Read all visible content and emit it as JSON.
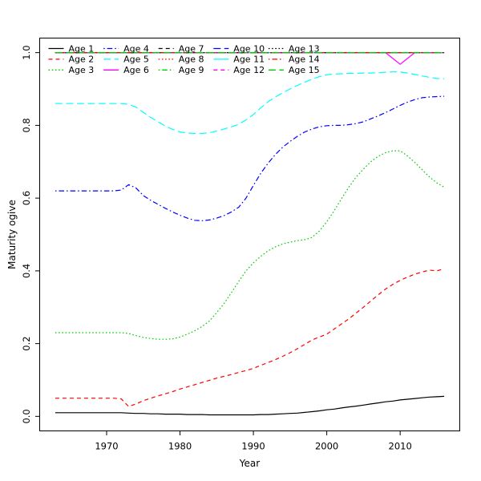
{
  "figure": {
    "background": "#FFFFFF",
    "box_color": "#000000"
  },
  "axes": {
    "x_tick_labels": [
      "1970",
      "1980",
      "1990",
      "2000",
      "2010"
    ],
    "x_tick_values": [
      1970,
      1980,
      1990,
      2000,
      2010
    ],
    "y_tick_labels": [
      "0.0",
      "0.2",
      "0.4",
      "0.6",
      "0.8",
      "1.0"
    ],
    "y_tick_values": [
      0.0,
      0.2,
      0.4,
      0.6,
      0.8,
      1.0
    ]
  },
  "legend": {
    "ncol": 5,
    "nrow": 3,
    "position": "top-left",
    "fill_order": "column-major"
  },
  "chart_data": {
    "type": "line",
    "title": "",
    "xlabel": "Year",
    "ylabel": "Maturity ogive",
    "xlim": [
      1963,
      2016
    ],
    "ylim": [
      0,
      1
    ],
    "grid": false,
    "legend_position": "top-left",
    "x": [
      1963,
      1964,
      1965,
      1966,
      1967,
      1968,
      1969,
      1970,
      1971,
      1972,
      1973,
      1974,
      1975,
      1976,
      1977,
      1978,
      1979,
      1980,
      1981,
      1982,
      1983,
      1984,
      1985,
      1986,
      1987,
      1988,
      1989,
      1990,
      1991,
      1992,
      1993,
      1994,
      1995,
      1996,
      1997,
      1998,
      1999,
      2000,
      2001,
      2002,
      2003,
      2004,
      2005,
      2006,
      2007,
      2008,
      2009,
      2010,
      2011,
      2012,
      2013,
      2014,
      2015,
      2016
    ],
    "series": [
      {
        "name": "Age 1",
        "color": "#000000",
        "linetype": "solid",
        "values": [
          0.01,
          0.01,
          0.01,
          0.01,
          0.01,
          0.01,
          0.01,
          0.01,
          0.01,
          0.01,
          0.009,
          0.008,
          0.008,
          0.007,
          0.007,
          0.006,
          0.006,
          0.006,
          0.005,
          0.005,
          0.005,
          0.004,
          0.004,
          0.004,
          0.004,
          0.004,
          0.004,
          0.004,
          0.005,
          0.005,
          0.006,
          0.007,
          0.008,
          0.009,
          0.011,
          0.013,
          0.015,
          0.018,
          0.02,
          0.023,
          0.026,
          0.028,
          0.031,
          0.034,
          0.037,
          0.04,
          0.042,
          0.045,
          0.047,
          0.049,
          0.051,
          0.053,
          0.054,
          0.055
        ]
      },
      {
        "name": "Age 2",
        "color": "#FF0000",
        "linetype": "dashed",
        "values": [
          0.05,
          0.05,
          0.05,
          0.05,
          0.05,
          0.05,
          0.05,
          0.05,
          0.05,
          0.048,
          0.027,
          0.034,
          0.043,
          0.05,
          0.056,
          0.062,
          0.068,
          0.075,
          0.081,
          0.087,
          0.093,
          0.099,
          0.105,
          0.11,
          0.115,
          0.121,
          0.126,
          0.132,
          0.14,
          0.148,
          0.156,
          0.165,
          0.175,
          0.186,
          0.198,
          0.21,
          0.218,
          0.226,
          0.24,
          0.254,
          0.268,
          0.284,
          0.3,
          0.317,
          0.334,
          0.35,
          0.363,
          0.374,
          0.383,
          0.391,
          0.397,
          0.402,
          0.4,
          0.406
        ]
      },
      {
        "name": "Age 3",
        "color": "#00CD00",
        "linetype": "dotted",
        "values": [
          0.23,
          0.23,
          0.23,
          0.23,
          0.23,
          0.23,
          0.23,
          0.23,
          0.23,
          0.23,
          0.228,
          0.222,
          0.217,
          0.214,
          0.212,
          0.212,
          0.213,
          0.218,
          0.226,
          0.235,
          0.247,
          0.262,
          0.285,
          0.31,
          0.34,
          0.371,
          0.4,
          0.422,
          0.44,
          0.455,
          0.466,
          0.474,
          0.479,
          0.483,
          0.486,
          0.492,
          0.51,
          0.535,
          0.565,
          0.598,
          0.63,
          0.658,
          0.68,
          0.7,
          0.715,
          0.725,
          0.73,
          0.73,
          0.716,
          0.698,
          0.678,
          0.658,
          0.642,
          0.63
        ]
      },
      {
        "name": "Age 4",
        "color": "#0000FF",
        "linetype": "dotdash",
        "values": [
          0.62,
          0.62,
          0.62,
          0.62,
          0.62,
          0.62,
          0.62,
          0.62,
          0.62,
          0.622,
          0.637,
          0.628,
          0.607,
          0.594,
          0.583,
          0.572,
          0.562,
          0.553,
          0.545,
          0.539,
          0.538,
          0.54,
          0.545,
          0.552,
          0.562,
          0.575,
          0.6,
          0.635,
          0.668,
          0.696,
          0.72,
          0.74,
          0.756,
          0.77,
          0.782,
          0.79,
          0.796,
          0.799,
          0.8,
          0.8,
          0.802,
          0.805,
          0.81,
          0.818,
          0.826,
          0.835,
          0.845,
          0.855,
          0.864,
          0.871,
          0.876,
          0.878,
          0.879,
          0.88
        ]
      },
      {
        "name": "Age 5",
        "color": "#00FFFF",
        "linetype": "longdash",
        "values": [
          0.86,
          0.86,
          0.86,
          0.86,
          0.86,
          0.86,
          0.86,
          0.86,
          0.86,
          0.86,
          0.858,
          0.85,
          0.836,
          0.822,
          0.81,
          0.798,
          0.789,
          0.782,
          0.779,
          0.778,
          0.778,
          0.78,
          0.784,
          0.79,
          0.796,
          0.803,
          0.815,
          0.83,
          0.848,
          0.865,
          0.878,
          0.89,
          0.9,
          0.91,
          0.919,
          0.927,
          0.934,
          0.939,
          0.941,
          0.942,
          0.943,
          0.943,
          0.944,
          0.944,
          0.945,
          0.946,
          0.947,
          0.947,
          0.944,
          0.94,
          0.936,
          0.932,
          0.929,
          0.928
        ]
      },
      {
        "name": "Age 6",
        "color": "#FF00FF",
        "linetype": "solid",
        "values": [
          1,
          1,
          1,
          1,
          1,
          1,
          1,
          1,
          1,
          1,
          1,
          1,
          1,
          1,
          1,
          1,
          1,
          1,
          1,
          1,
          1,
          1,
          1,
          1,
          1,
          1,
          1,
          1,
          1,
          1,
          1,
          1,
          1,
          1,
          1,
          1,
          1,
          1,
          1,
          1,
          1,
          1,
          1,
          1,
          1,
          1,
          0.984,
          0.968,
          0.984,
          1,
          1,
          1,
          1,
          1
        ]
      },
      {
        "name": "Age 7",
        "color": "#000000",
        "linetype": "dashed",
        "constant": 1.0
      },
      {
        "name": "Age 8",
        "color": "#FF0000",
        "linetype": "dotted",
        "constant": 1.0
      },
      {
        "name": "Age 9",
        "color": "#00CD00",
        "linetype": "dotdash",
        "constant": 1.0
      },
      {
        "name": "Age 10",
        "color": "#0000FF",
        "linetype": "longdash",
        "constant": 1.0
      },
      {
        "name": "Age 11",
        "color": "#00FFFF",
        "linetype": "solid",
        "constant": 1.0
      },
      {
        "name": "Age 12",
        "color": "#FF00FF",
        "linetype": "dashed",
        "constant": 1.0
      },
      {
        "name": "Age 13",
        "color": "#000000",
        "linetype": "dotted",
        "constant": 1.0
      },
      {
        "name": "Age 14",
        "color": "#FF0000",
        "linetype": "dotdash",
        "constant": 1.0
      },
      {
        "name": "Age 15",
        "color": "#00CD00",
        "linetype": "longdash",
        "constant": 1.0
      }
    ]
  }
}
